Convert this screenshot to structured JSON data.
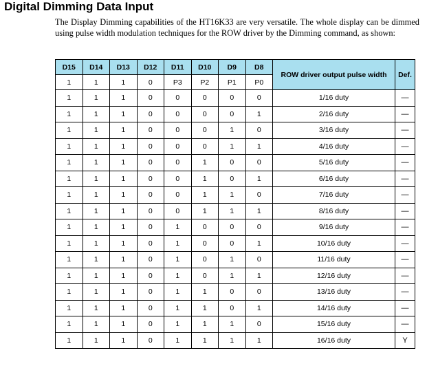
{
  "heading": "Digital Dimming Data Input",
  "intro": "The Display Dimming capabilities of the HT16K33 are very versatile. The whole display can be dimmed using pulse width modulation techniques for the ROW driver by the Dimming command, as shown:",
  "table": {
    "bit_headers": [
      "D15",
      "D14",
      "D13",
      "D12",
      "D11",
      "D10",
      "D9",
      "D8"
    ],
    "second_row": [
      "1",
      "1",
      "1",
      "0",
      "P3",
      "P2",
      "P1",
      "P0"
    ],
    "duty_header": "ROW driver output pulse width",
    "def_header": "Def.",
    "rows": [
      {
        "bits": [
          "1",
          "1",
          "1",
          "0",
          "0",
          "0",
          "0",
          "0"
        ],
        "duty": "1/16 duty",
        "def": "—"
      },
      {
        "bits": [
          "1",
          "1",
          "1",
          "0",
          "0",
          "0",
          "0",
          "1"
        ],
        "duty": "2/16 duty",
        "def": "—"
      },
      {
        "bits": [
          "1",
          "1",
          "1",
          "0",
          "0",
          "0",
          "1",
          "0"
        ],
        "duty": "3/16 duty",
        "def": "—"
      },
      {
        "bits": [
          "1",
          "1",
          "1",
          "0",
          "0",
          "0",
          "1",
          "1"
        ],
        "duty": "4/16 duty",
        "def": "—"
      },
      {
        "bits": [
          "1",
          "1",
          "1",
          "0",
          "0",
          "1",
          "0",
          "0"
        ],
        "duty": "5/16 duty",
        "def": "—"
      },
      {
        "bits": [
          "1",
          "1",
          "1",
          "0",
          "0",
          "1",
          "0",
          "1"
        ],
        "duty": "6/16 duty",
        "def": "—"
      },
      {
        "bits": [
          "1",
          "1",
          "1",
          "0",
          "0",
          "1",
          "1",
          "0"
        ],
        "duty": "7/16 duty",
        "def": "—"
      },
      {
        "bits": [
          "1",
          "1",
          "1",
          "0",
          "0",
          "1",
          "1",
          "1"
        ],
        "duty": "8/16 duty",
        "def": "—"
      },
      {
        "bits": [
          "1",
          "1",
          "1",
          "0",
          "1",
          "0",
          "0",
          "0"
        ],
        "duty": "9/16 duty",
        "def": "—"
      },
      {
        "bits": [
          "1",
          "1",
          "1",
          "0",
          "1",
          "0",
          "0",
          "1"
        ],
        "duty": "10/16 duty",
        "def": "—"
      },
      {
        "bits": [
          "1",
          "1",
          "1",
          "0",
          "1",
          "0",
          "1",
          "0"
        ],
        "duty": "11/16 duty",
        "def": "—"
      },
      {
        "bits": [
          "1",
          "1",
          "1",
          "0",
          "1",
          "0",
          "1",
          "1"
        ],
        "duty": "12/16 duty",
        "def": "—"
      },
      {
        "bits": [
          "1",
          "1",
          "1",
          "0",
          "1",
          "1",
          "0",
          "0"
        ],
        "duty": "13/16 duty",
        "def": "—"
      },
      {
        "bits": [
          "1",
          "1",
          "1",
          "0",
          "1",
          "1",
          "0",
          "1"
        ],
        "duty": "14/16 duty",
        "def": "—"
      },
      {
        "bits": [
          "1",
          "1",
          "1",
          "0",
          "1",
          "1",
          "1",
          "0"
        ],
        "duty": "15/16 duty",
        "def": "—"
      },
      {
        "bits": [
          "1",
          "1",
          "1",
          "0",
          "1",
          "1",
          "1",
          "1"
        ],
        "duty": "16/16 duty",
        "def": "Y"
      }
    ]
  },
  "colors": {
    "header_fill": "#a9dfef"
  }
}
